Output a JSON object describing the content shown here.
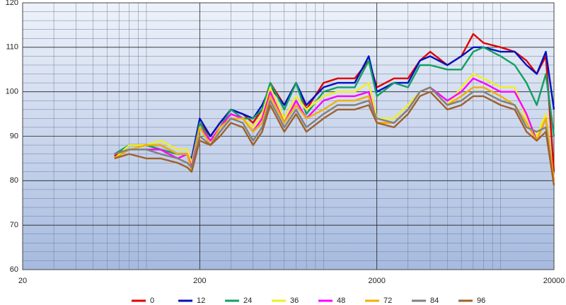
{
  "chart_data": {
    "type": "line",
    "x": [
      66,
      80,
      100,
      120,
      150,
      170,
      180,
      200,
      230,
      260,
      300,
      350,
      400,
      450,
      500,
      600,
      700,
      800,
      1000,
      1200,
      1500,
      1800,
      2000,
      2500,
      3000,
      3500,
      4000,
      5000,
      6000,
      7000,
      8000,
      10000,
      12000,
      14000,
      16000,
      18000,
      20000
    ],
    "series": [
      {
        "name": "0",
        "color": "#e00000",
        "values": [
          85.5,
          88,
          88,
          87,
          86,
          86,
          84,
          93,
          90,
          93,
          96,
          95,
          93,
          96,
          102,
          97,
          102,
          96,
          102,
          103,
          103,
          107,
          101,
          103,
          103,
          107,
          109,
          106,
          108,
          113,
          111,
          110,
          109,
          107,
          104,
          108,
          82
        ]
      },
      {
        "name": "12",
        "color": "#0010c0",
        "values": [
          85,
          88,
          88,
          88,
          86,
          86,
          85,
          94,
          90,
          93,
          96,
          95,
          94,
          97,
          101,
          97,
          102,
          97,
          101,
          102,
          102,
          108,
          100,
          102,
          102,
          107,
          108,
          106,
          108,
          110,
          110,
          109,
          109,
          106,
          104,
          109,
          96
        ]
      },
      {
        "name": "24",
        "color": "#10a060",
        "values": [
          86,
          88,
          88,
          87,
          86,
          86,
          84,
          93,
          89,
          92,
          96,
          94,
          94,
          96,
          102,
          96,
          102,
          95,
          100,
          101,
          101,
          107,
          99,
          102,
          101,
          106,
          106,
          105,
          105,
          109,
          110,
          108,
          106,
          102,
          97,
          104,
          90
        ]
      },
      {
        "name": "36",
        "color": "#f0f020",
        "values": [
          85,
          88,
          88,
          89,
          87,
          87,
          84,
          92,
          89,
          92,
          95,
          94,
          92,
          95,
          101,
          94,
          99,
          96,
          99,
          100,
          100,
          102,
          94,
          94,
          97,
          100,
          101,
          97,
          101,
          104,
          103,
          101,
          101,
          94,
          90,
          95,
          80
        ]
      },
      {
        "name": "48",
        "color": "#ff00ff",
        "values": [
          86,
          87,
          87,
          87,
          85,
          86,
          83,
          92,
          89,
          92,
          95,
          94,
          91,
          94,
          100,
          93,
          98,
          94,
          98,
          99,
          99,
          100,
          93,
          93,
          96,
          100,
          101,
          98,
          100,
          103,
          102,
          100,
          100,
          95,
          89,
          94,
          80
        ]
      },
      {
        "name": "72",
        "color": "#f0b000",
        "values": [
          85,
          87,
          88,
          88,
          86,
          86,
          82,
          92,
          88,
          92,
          94,
          94,
          91,
          93,
          99,
          93,
          97,
          94,
          96,
          98,
          98,
          99,
          93,
          93,
          96,
          100,
          101,
          97,
          99,
          101,
          101,
          99,
          97,
          93,
          89,
          94,
          80
        ]
      },
      {
        "name": "84",
        "color": "#808080",
        "values": [
          86,
          87,
          87,
          86,
          85,
          84,
          83,
          90,
          88,
          91,
          94,
          93,
          89,
          92,
          98,
          92,
          96,
          92,
          95,
          97,
          97,
          98,
          94,
          93,
          96,
          100,
          101,
          97,
          98,
          100,
          100,
          98,
          97,
          92,
          91,
          92,
          79
        ]
      },
      {
        "name": "96",
        "color": "#a0602a",
        "values": [
          85,
          86,
          85,
          85,
          84,
          83,
          82,
          89,
          88,
          90,
          93,
          92,
          88,
          91,
          97,
          91,
          95,
          91,
          94,
          96,
          96,
          97,
          93,
          92,
          95,
          99,
          100,
          96,
          97,
          99,
          99,
          97,
          96,
          91,
          89,
          91,
          79
        ]
      }
    ],
    "xlim": [
      20,
      20000
    ],
    "xticks": [
      20,
      200,
      2000,
      20000
    ],
    "xscale": "log",
    "ylim": [
      60,
      120
    ],
    "yticks": [
      60,
      70,
      80,
      90,
      100,
      110,
      120
    ],
    "grid": true,
    "legend": "bottom"
  }
}
